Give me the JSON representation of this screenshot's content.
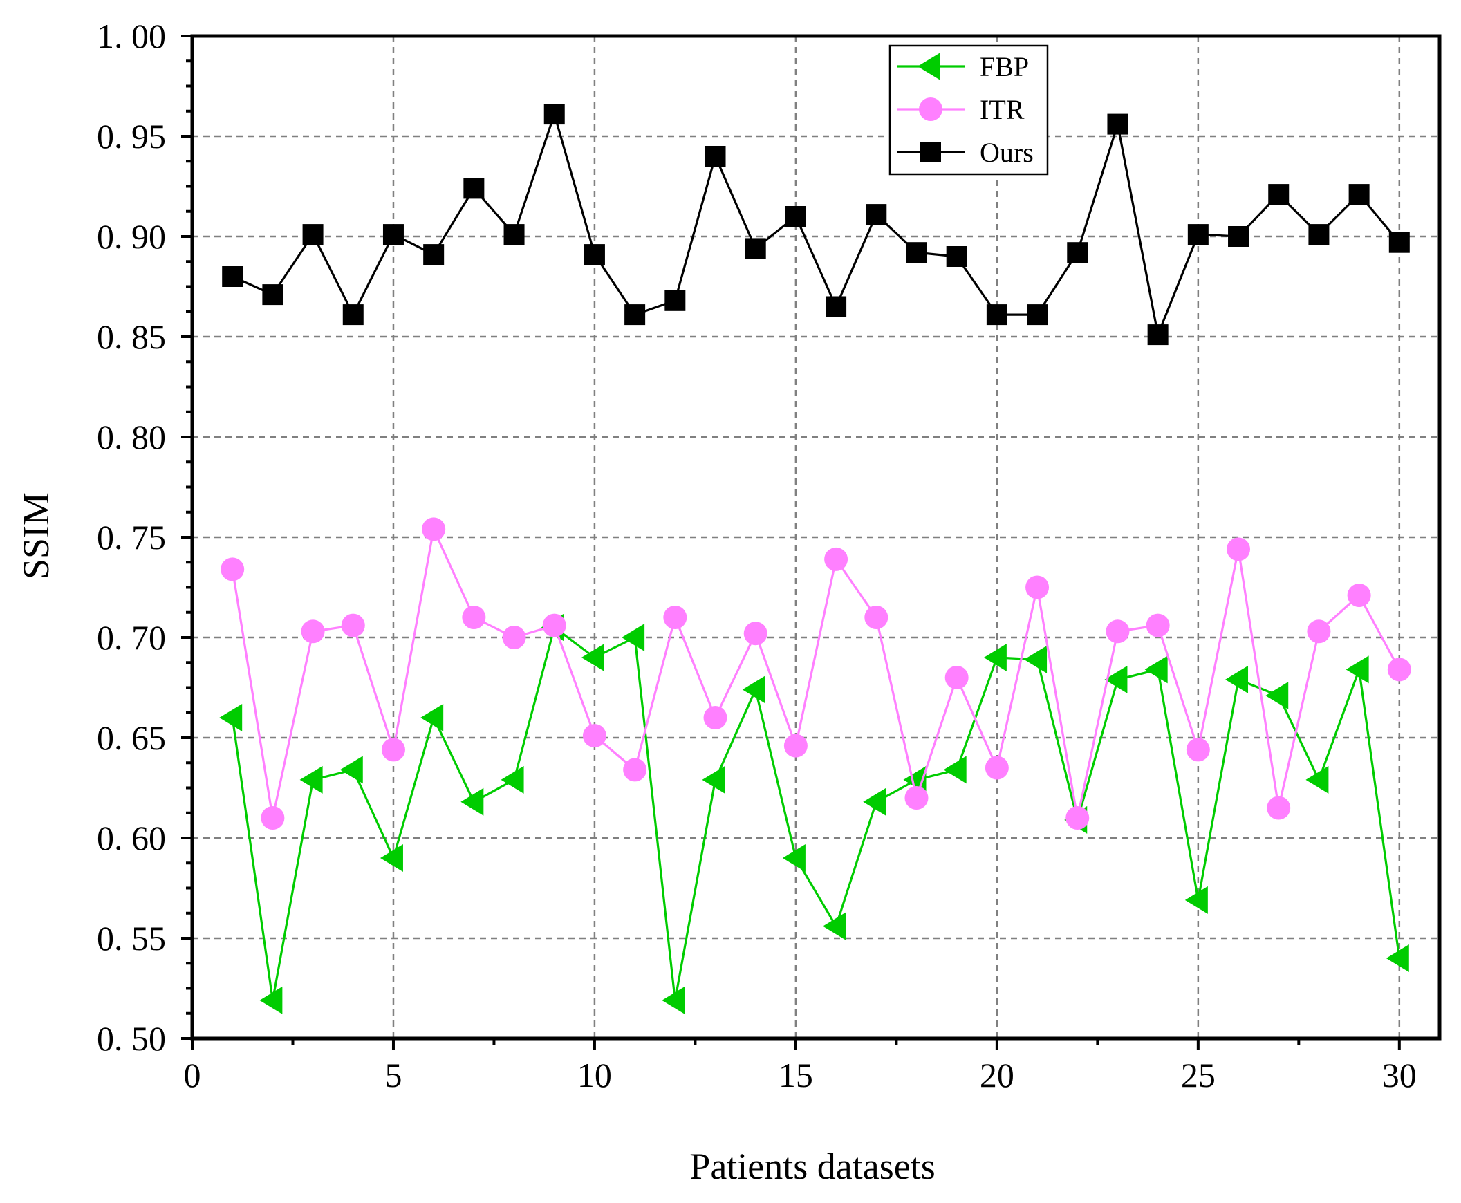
{
  "chart_data": {
    "type": "line",
    "title": "",
    "xlabel": "Patients datasets",
    "ylabel": "SSIM",
    "xlim": [
      0,
      31
    ],
    "ylim": [
      0.5,
      1.0
    ],
    "xticks": [
      0,
      5,
      10,
      15,
      20,
      25,
      30
    ],
    "yticks": [
      0.5,
      0.55,
      0.6,
      0.65,
      0.7,
      0.75,
      0.8,
      0.85,
      0.9,
      0.95,
      1.0
    ],
    "xtick_labels": [
      "0",
      "5",
      "10",
      "15",
      "20",
      "25",
      "30"
    ],
    "ytick_labels": [
      "0. 50",
      "0. 55",
      "0. 60",
      "0. 65",
      "0. 70",
      "0. 75",
      "0. 80",
      "0. 85",
      "0. 90",
      "0. 95",
      "1. 00"
    ],
    "grid": true,
    "legend_position": "top-right",
    "x": [
      1,
      2,
      3,
      4,
      5,
      6,
      7,
      8,
      9,
      10,
      11,
      12,
      13,
      14,
      15,
      16,
      17,
      18,
      19,
      20,
      21,
      22,
      23,
      24,
      25,
      26,
      27,
      28,
      29,
      30
    ],
    "series": [
      {
        "name": "FBP",
        "color": "#00cc00",
        "marker": "triangle-left",
        "values": [
          0.66,
          0.519,
          0.629,
          0.634,
          0.59,
          0.66,
          0.618,
          0.629,
          0.705,
          0.69,
          0.7,
          0.519,
          0.629,
          0.674,
          0.59,
          0.556,
          0.618,
          0.629,
          0.634,
          0.69,
          0.689,
          0.609,
          0.679,
          0.684,
          0.569,
          0.679,
          0.671,
          0.629,
          0.684,
          0.54
        ]
      },
      {
        "name": "ITR",
        "color": "#ff80ff",
        "marker": "circle",
        "values": [
          0.734,
          0.61,
          0.703,
          0.706,
          0.644,
          0.754,
          0.71,
          0.7,
          0.706,
          0.651,
          0.634,
          0.71,
          0.66,
          0.702,
          0.646,
          0.739,
          0.71,
          0.62,
          0.68,
          0.635,
          0.725,
          0.61,
          0.703,
          0.706,
          0.644,
          0.744,
          0.615,
          0.703,
          0.721,
          0.684
        ]
      },
      {
        "name": "Ours",
        "color": "#000000",
        "marker": "square",
        "values": [
          0.88,
          0.871,
          0.901,
          0.861,
          0.901,
          0.891,
          0.924,
          0.901,
          0.961,
          0.891,
          0.861,
          0.868,
          0.94,
          0.894,
          0.91,
          0.865,
          0.911,
          0.892,
          0.89,
          0.861,
          0.861,
          0.892,
          0.956,
          0.851,
          0.901,
          0.9,
          0.921,
          0.901,
          0.921,
          0.897
        ]
      }
    ]
  }
}
